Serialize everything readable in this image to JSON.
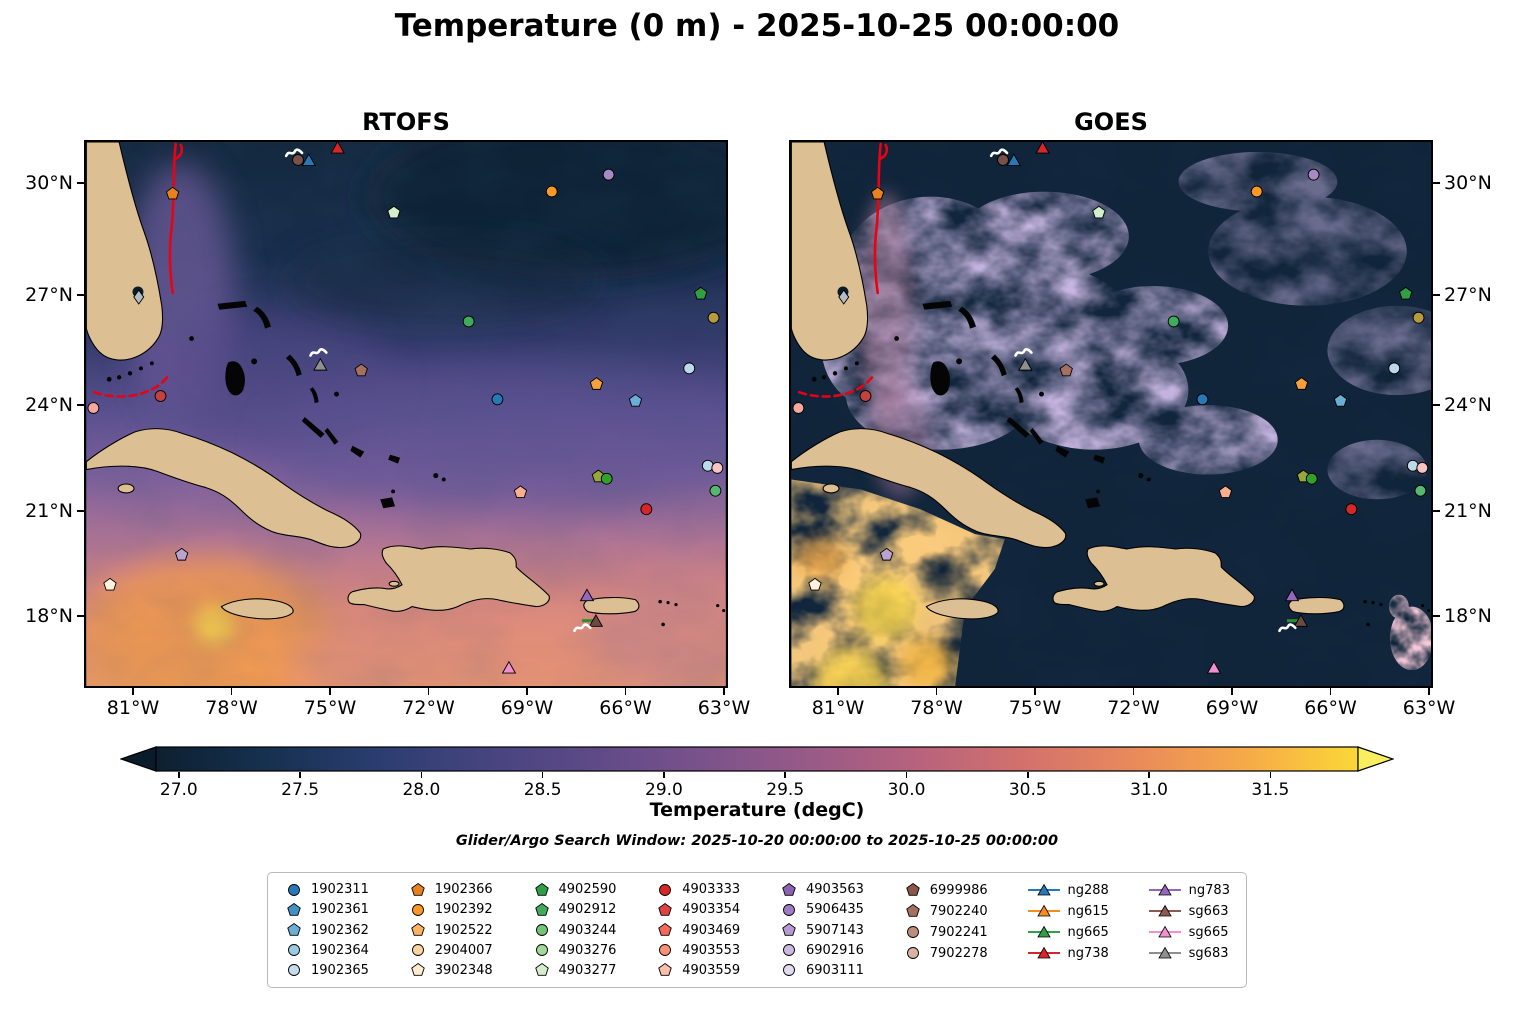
{
  "title": "Temperature (0 m) - 2025-10-25 00:00:00",
  "panel_left": {
    "title": "RTOFS"
  },
  "panel_right": {
    "title": "GOES"
  },
  "axes": {
    "lon_labels": [
      "81°W",
      "78°W",
      "75°W",
      "72°W",
      "69°W",
      "66°W",
      "63°W"
    ],
    "lat_labels": [
      "30°N",
      "27°N",
      "24°N",
      "21°N",
      "18°N"
    ]
  },
  "colorbar": {
    "label": "Temperature (degC)",
    "ticks": [
      27.0,
      27.5,
      28.0,
      28.5,
      29.0,
      29.5,
      30.0,
      30.5,
      31.0,
      31.5
    ],
    "colormap_stops": [
      "#0d2030",
      "#16304f",
      "#2a3d6f",
      "#45447f",
      "#5e4a87",
      "#7a528b",
      "#995a87",
      "#b8637d",
      "#d4726b",
      "#ea8b5a",
      "#f6ab48",
      "#fbd737"
    ],
    "under_color": "#0a1b2b",
    "over_color": "#f9ef5e"
  },
  "search_window": "Glider/Argo Search Window: 2025-10-20 00:00:00 to 2025-10-25 00:00:00",
  "legend": {
    "columns": [
      [
        {
          "label": "1902311",
          "shape": "circle",
          "color": "#2878b5"
        },
        {
          "label": "1902361",
          "shape": "pentagon",
          "color": "#4292c6"
        },
        {
          "label": "1902362",
          "shape": "pentagon",
          "color": "#6baed6"
        },
        {
          "label": "1902364",
          "shape": "circle",
          "color": "#9ecae1"
        },
        {
          "label": "1902365",
          "shape": "circle",
          "color": "#c6dbef"
        }
      ],
      [
        {
          "label": "1902366",
          "shape": "pentagon",
          "color": "#e8821e"
        },
        {
          "label": "1902392",
          "shape": "circle",
          "color": "#fd9827"
        },
        {
          "label": "1902522",
          "shape": "pentagon",
          "color": "#fdb462"
        },
        {
          "label": "2904007",
          "shape": "circle",
          "color": "#fdd49e"
        },
        {
          "label": "3902348",
          "shape": "pentagon",
          "color": "#fdeccd"
        }
      ],
      [
        {
          "label": "4902590",
          "shape": "pentagon",
          "color": "#2f9e44"
        },
        {
          "label": "4902912",
          "shape": "pentagon",
          "color": "#41ab5d"
        },
        {
          "label": "4903244",
          "shape": "circle",
          "color": "#74c476"
        },
        {
          "label": "4903276",
          "shape": "circle",
          "color": "#a1d99b"
        },
        {
          "label": "4903277",
          "shape": "pentagon",
          "color": "#d3eecd"
        }
      ],
      [
        {
          "label": "4903333",
          "shape": "circle",
          "color": "#d62728"
        },
        {
          "label": "4903354",
          "shape": "pentagon",
          "color": "#e04141"
        },
        {
          "label": "4903469",
          "shape": "pentagon",
          "color": "#f4695c"
        },
        {
          "label": "4903553",
          "shape": "circle",
          "color": "#fc9178"
        },
        {
          "label": "4903559",
          "shape": "pentagon",
          "color": "#fcbfa9"
        }
      ],
      [
        {
          "label": "4903563",
          "shape": "pentagon",
          "color": "#8a62b0"
        },
        {
          "label": "5906435",
          "shape": "circle",
          "color": "#a07cc4"
        },
        {
          "label": "5907143",
          "shape": "pentagon",
          "color": "#b79ad2"
        },
        {
          "label": "6902916",
          "shape": "circle",
          "color": "#cdb9e0"
        },
        {
          "label": "6903111",
          "shape": "circle",
          "color": "#e4daf0"
        }
      ],
      [
        {
          "label": "6999986",
          "shape": "pentagon",
          "color": "#8c564b"
        },
        {
          "label": "7902240",
          "shape": "pentagon",
          "color": "#a4705f"
        },
        {
          "label": "7902241",
          "shape": "circle",
          "color": "#bd8d7b"
        },
        {
          "label": "7902278",
          "shape": "circle",
          "color": "#d8b2a3"
        }
      ],
      [
        {
          "label": "ng288",
          "shape": "glider",
          "color": "#2878b5"
        },
        {
          "label": "ng615",
          "shape": "glider",
          "color": "#f68b1f"
        },
        {
          "label": "ng665",
          "shape": "glider",
          "color": "#2f9e44"
        },
        {
          "label": "ng738",
          "shape": "glider",
          "color": "#d62728"
        }
      ],
      [
        {
          "label": "ng783",
          "shape": "glider",
          "color": "#9467bd"
        },
        {
          "label": "sg663",
          "shape": "glider",
          "color": "#8c5a50"
        },
        {
          "label": "sg665",
          "shape": "glider",
          "color": "#f191c9"
        },
        {
          "label": "sg683",
          "shape": "glider",
          "color": "#8f8f8f"
        }
      ]
    ]
  },
  "map_markers": [
    {
      "x": 32.5,
      "y": 2.0,
      "shape": "track",
      "color": "#ffffff"
    },
    {
      "x": 33.1,
      "y": 3.3,
      "shape": "circle",
      "color": "#7a5148"
    },
    {
      "x": 34.8,
      "y": 3.6,
      "shape": "triangle",
      "color": "#2878b5"
    },
    {
      "x": 39.3,
      "y": 1.3,
      "shape": "triangle",
      "color": "#d62728"
    },
    {
      "x": 13.5,
      "y": 9.5,
      "shape": "pentagon",
      "color": "#e8821e"
    },
    {
      "x": 72.8,
      "y": 9.1,
      "shape": "circle",
      "color": "#fd9827"
    },
    {
      "x": 81.7,
      "y": 6.0,
      "shape": "circle",
      "color": "#a888c6"
    },
    {
      "x": 48.1,
      "y": 13.0,
      "shape": "pentagon",
      "color": "#d3eecd"
    },
    {
      "x": 8.2,
      "y": 28.5,
      "shape": "diamond",
      "color": "#b3bcc4"
    },
    {
      "x": 96.1,
      "y": 27.9,
      "shape": "pentagon",
      "color": "#2f9e44"
    },
    {
      "x": 59.8,
      "y": 33.0,
      "shape": "circle",
      "color": "#41ab5d"
    },
    {
      "x": 98.1,
      "y": 32.3,
      "shape": "circle",
      "color": "#b69b3e"
    },
    {
      "x": 36.3,
      "y": 38.7,
      "shape": "track",
      "color": "#ffffff"
    },
    {
      "x": 36.6,
      "y": 41.2,
      "shape": "triangle",
      "color": "#8f8f8f"
    },
    {
      "x": 43.0,
      "y": 42.0,
      "shape": "pentagon",
      "color": "#a4705f"
    },
    {
      "x": 79.8,
      "y": 44.5,
      "shape": "pentagon",
      "color": "#f6a03c"
    },
    {
      "x": 94.3,
      "y": 41.6,
      "shape": "circle",
      "color": "#bcd9ec"
    },
    {
      "x": 64.3,
      "y": 47.3,
      "shape": "circle",
      "color": "#2878b5"
    },
    {
      "x": 85.9,
      "y": 47.6,
      "shape": "pentagon",
      "color": "#6baed6"
    },
    {
      "x": 1.1,
      "y": 48.9,
      "shape": "circle",
      "color": "#f6a8a0"
    },
    {
      "x": 11.6,
      "y": 46.7,
      "shape": "circle",
      "color": "#c3423f"
    },
    {
      "x": 97.2,
      "y": 59.5,
      "shape": "circle",
      "color": "#bcd9ec"
    },
    {
      "x": 98.7,
      "y": 59.9,
      "shape": "circle",
      "color": "#f8c3c0"
    },
    {
      "x": 80.1,
      "y": 61.5,
      "shape": "pentagon",
      "color": "#97a83b"
    },
    {
      "x": 81.4,
      "y": 61.9,
      "shape": "circle",
      "color": "#33a02c"
    },
    {
      "x": 67.9,
      "y": 64.4,
      "shape": "pentagon",
      "color": "#fcae91"
    },
    {
      "x": 98.4,
      "y": 64.1,
      "shape": "circle",
      "color": "#56b870"
    },
    {
      "x": 87.6,
      "y": 67.5,
      "shape": "circle",
      "color": "#d62728"
    },
    {
      "x": 14.9,
      "y": 75.9,
      "shape": "pentagon",
      "color": "#bba3d0"
    },
    {
      "x": 3.7,
      "y": 81.4,
      "shape": "pentagon",
      "color": "#fdf0dc"
    },
    {
      "x": 78.3,
      "y": 83.6,
      "shape": "triangle",
      "color": "#9467bd"
    },
    {
      "x": 78.6,
      "y": 88.0,
      "shape": "dash",
      "color": "#2e8b2e"
    },
    {
      "x": 79.7,
      "y": 88.3,
      "shape": "triangle",
      "color": "#6b4a42"
    },
    {
      "x": 77.6,
      "y": 89.3,
      "shape": "track",
      "color": "#ffffff"
    },
    {
      "x": 66.1,
      "y": 96.9,
      "shape": "triangle",
      "color": "#f08fd0"
    }
  ],
  "chart_data": {
    "type": "heatmap",
    "title": "Temperature (0 m) - 2025-10-25 00:00:00",
    "panels": [
      {
        "name": "RTOFS",
        "description": "Smooth model SST field: ~27-27.5 degC in the open Atlantic (upper right), 28-29 degC purple band across the Bahamas, 29.5-30.5 degC pink/orange in the Caribbean, local ~31 degC maximum in the far southwest corner south of Cuba."
      },
      {
        "name": "GOES",
        "description": "Satellite SST with extensive cloud-masked gaps (dark navy background); mottled 28.5-29.5 degC retrievals over the Bahamas and Gulf Stream, 30-31.5 degC retrievals in the Caribbean south and west of Cuba, small warm patch southeast of Puerto Rico."
      }
    ],
    "x_axis": {
      "type": "longitude",
      "tick_labels": [
        "81°W",
        "78°W",
        "75°W",
        "72°W",
        "69°W",
        "66°W",
        "63°W"
      ],
      "approx_range_deg_west": [
        82.5,
        62.4
      ]
    },
    "y_axis": {
      "type": "latitude",
      "tick_labels": [
        "30°N",
        "27°N",
        "24°N",
        "21°N",
        "18°N"
      ],
      "approx_range_deg_north": [
        16.8,
        31.2
      ]
    },
    "colorbar": {
      "label": "Temperature (degC)",
      "tick_values": [
        27.0,
        27.5,
        28.0,
        28.5,
        29.0,
        29.5,
        30.0,
        30.5,
        31.0,
        31.5
      ],
      "approx_range": [
        26.9,
        31.9
      ],
      "extend": "both"
    },
    "overlays": [
      "land mask (tan)",
      "coastlines (black)",
      "red front contour along the Florida Current",
      "Argo float and glider position markers (see legend)"
    ]
  }
}
